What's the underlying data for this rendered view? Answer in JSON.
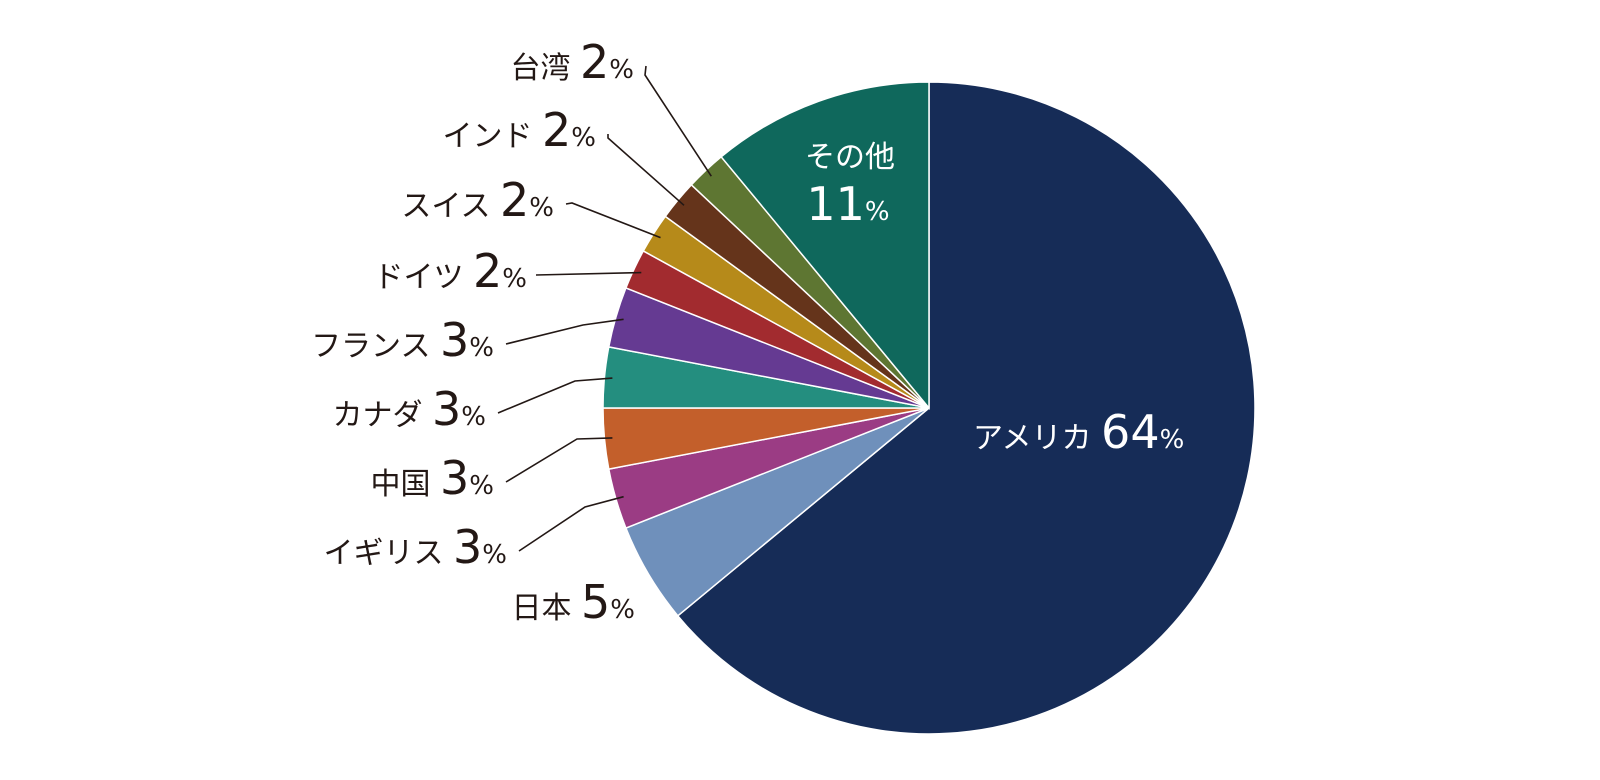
{
  "chart_data": {
    "type": "pie",
    "start_angle_deg": 0,
    "direction": "clockwise",
    "pct_symbol": "%",
    "slices": [
      {
        "name": "アメリカ",
        "value": 64,
        "color": "#162c57",
        "label_inside": true
      },
      {
        "name": "日本",
        "value": 5,
        "color": "#6f90bb"
      },
      {
        "name": "イギリス",
        "value": 3,
        "color": "#9b3c84"
      },
      {
        "name": "中国",
        "value": 3,
        "color": "#c35f2b"
      },
      {
        "name": "カナダ",
        "value": 3,
        "color": "#248e7f"
      },
      {
        "name": "フランス",
        "value": 3,
        "color": "#653a92"
      },
      {
        "name": "ドイツ",
        "value": 2,
        "color": "#a22b2f"
      },
      {
        "name": "スイス",
        "value": 2,
        "color": "#b68a1a"
      },
      {
        "name": "インド",
        "value": 2,
        "color": "#65341b"
      },
      {
        "name": "台湾",
        "value": 2,
        "color": "#5e7632"
      },
      {
        "name": "その他",
        "value": 11,
        "color": "#0f685c",
        "label_inside": true
      }
    ]
  }
}
